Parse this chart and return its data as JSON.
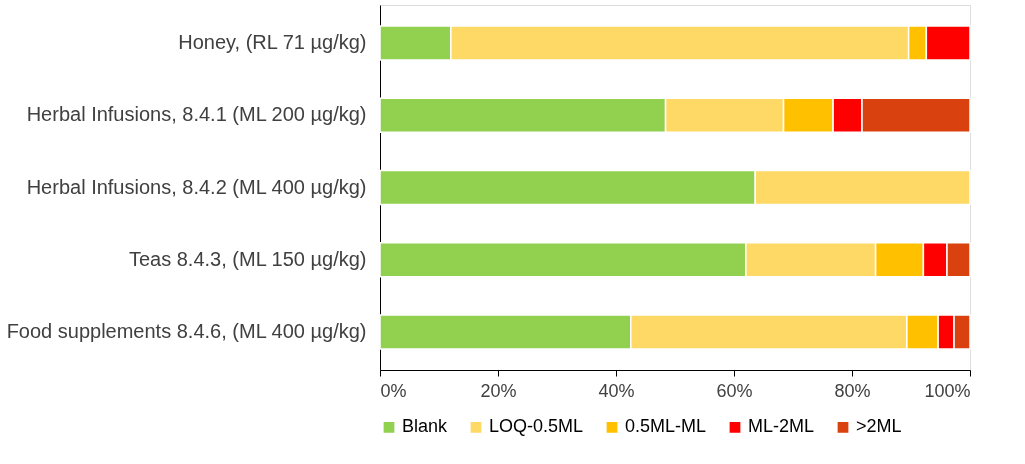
{
  "chart_data": {
    "type": "bar",
    "orientation": "horizontal",
    "stacked": true,
    "categories": [
      "Honey, (RL 71 µg/kg)",
      "Herbal Infusions, 8.4.1 (ML 200 µg/kg)",
      "Herbal Infusions, 8.4.2 (ML 400 µg/kg)",
      "Teas 8.4.3, (ML 150 µg/kg)",
      "Food supplements 8.4.6, (ML 400 µg/kg)"
    ],
    "series": [
      {
        "name": "Blank",
        "color": "#92d050",
        "values": [
          12,
          48.4,
          63.6,
          62,
          42.5
        ]
      },
      {
        "name": "LOQ-0.5ML",
        "color": "#ffd966",
        "values": [
          77.6,
          20,
          36.4,
          22,
          46.8
        ]
      },
      {
        "name": "0.5ML-ML",
        "color": "#ffc000",
        "values": [
          3,
          8.4,
          null,
          8.1,
          5.3
        ]
      },
      {
        "name": "ML-2ML",
        "color": "#ff0000",
        "values": [
          7.4,
          4.9,
          null,
          4,
          2.7
        ]
      },
      {
        "name": ">2ML",
        "color": "#d9420f",
        "values": [
          null,
          18.3,
          null,
          3.9,
          2.7
        ]
      }
    ],
    "xlim": [
      0,
      100
    ],
    "xticks": [
      {
        "value": 0,
        "label": "0%"
      },
      {
        "value": 20,
        "label": "20%"
      },
      {
        "value": 40,
        "label": "40%"
      },
      {
        "value": 60,
        "label": "60%"
      },
      {
        "value": 80,
        "label": "80%"
      },
      {
        "value": 100,
        "label": "100%"
      }
    ],
    "grid": false,
    "legend": "bottom"
  }
}
